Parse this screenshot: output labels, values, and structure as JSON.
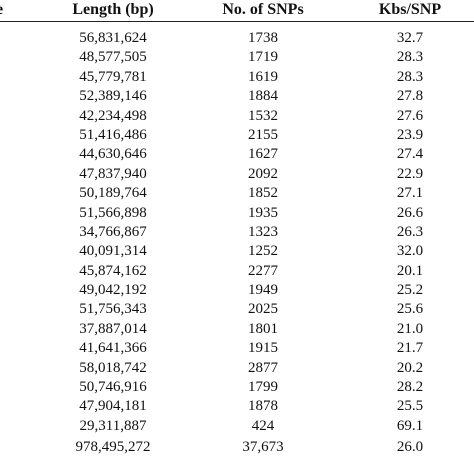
{
  "header": {
    "cut_label": "e",
    "length": "Length (bp)",
    "snps": "No. of SNPs",
    "kbs": "Kbs/SNP"
  },
  "rows": [
    {
      "length": "56,831,624",
      "snps": "1738",
      "kbs": "32.7"
    },
    {
      "length": "48,577,505",
      "snps": "1719",
      "kbs": "28.3"
    },
    {
      "length": "45,779,781",
      "snps": "1619",
      "kbs": "28.3"
    },
    {
      "length": "52,389,146",
      "snps": "1884",
      "kbs": "27.8"
    },
    {
      "length": "42,234,498",
      "snps": "1532",
      "kbs": "27.6"
    },
    {
      "length": "51,416,486",
      "snps": "2155",
      "kbs": "23.9"
    },
    {
      "length": "44,630,646",
      "snps": "1627",
      "kbs": "27.4"
    },
    {
      "length": "47,837,940",
      "snps": "2092",
      "kbs": "22.9"
    },
    {
      "length": "50,189,764",
      "snps": "1852",
      "kbs": "27.1"
    },
    {
      "length": "51,566,898",
      "snps": "1935",
      "kbs": "26.6"
    },
    {
      "length": "34,766,867",
      "snps": "1323",
      "kbs": "26.3"
    },
    {
      "length": "40,091,314",
      "snps": "1252",
      "kbs": "32.0"
    },
    {
      "length": "45,874,162",
      "snps": "2277",
      "kbs": "20.1"
    },
    {
      "length": "49,042,192",
      "snps": "1949",
      "kbs": "25.2"
    },
    {
      "length": "51,756,343",
      "snps": "2025",
      "kbs": "25.6"
    },
    {
      "length": "37,887,014",
      "snps": "1801",
      "kbs": "21.0"
    },
    {
      "length": "41,641,366",
      "snps": "1915",
      "kbs": "21.7"
    },
    {
      "length": "58,018,742",
      "snps": "2877",
      "kbs": "20.2"
    },
    {
      "length": "50,746,916",
      "snps": "1799",
      "kbs": "28.2"
    },
    {
      "length": "47,904,181",
      "snps": "1878",
      "kbs": "25.5"
    },
    {
      "length": "29,311,887",
      "snps": "424",
      "kbs": "69.1"
    }
  ],
  "total": {
    "length": "978,495,272",
    "snps": "37,673",
    "kbs": "26.0"
  }
}
